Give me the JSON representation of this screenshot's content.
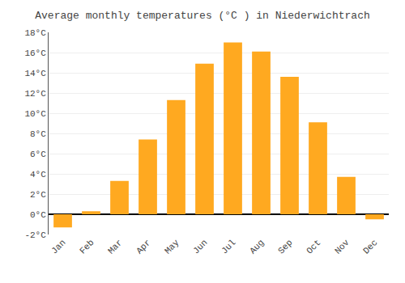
{
  "chart_data": {
    "type": "bar",
    "title": "Average monthly temperatures (°C ) in Niederwichtrach",
    "categories": [
      "Jan",
      "Feb",
      "Mar",
      "Apr",
      "May",
      "Jun",
      "Jul",
      "Aug",
      "Sep",
      "Oct",
      "Nov",
      "Dec"
    ],
    "values": [
      -1.3,
      0.3,
      3.3,
      7.4,
      11.3,
      14.9,
      17.0,
      16.1,
      13.6,
      9.1,
      3.7,
      -0.5
    ],
    "color": "#FFA920",
    "ylim": [
      -2,
      18
    ],
    "yticks": [
      {
        "value": -2,
        "label": "-2°C"
      },
      {
        "value": 0,
        "label": "0°C"
      },
      {
        "value": 2,
        "label": "2°C"
      },
      {
        "value": 4,
        "label": "4°C"
      },
      {
        "value": 6,
        "label": "6°C"
      },
      {
        "value": 8,
        "label": "8°C"
      },
      {
        "value": 10,
        "label": "10°C"
      },
      {
        "value": 12,
        "label": "12°C"
      },
      {
        "value": 14,
        "label": "14°C"
      },
      {
        "value": 16,
        "label": "16°C"
      },
      {
        "value": 18,
        "label": "18°C"
      }
    ],
    "grid": true
  }
}
